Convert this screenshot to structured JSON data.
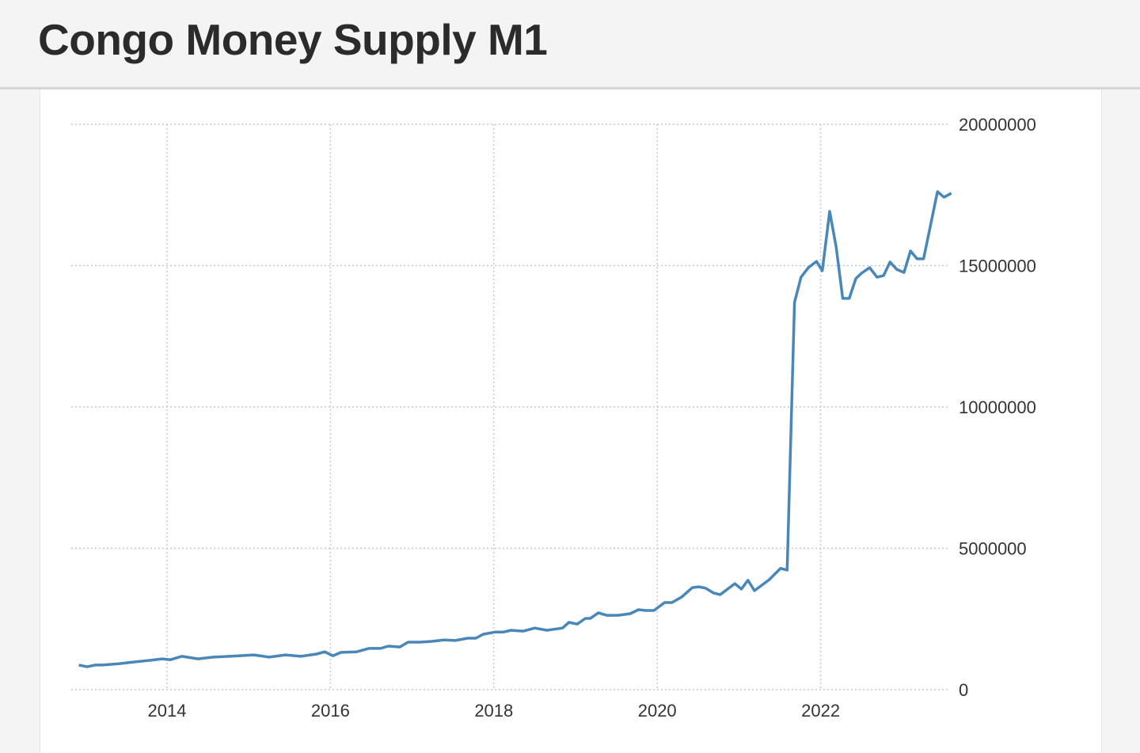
{
  "header": {
    "title": "Congo Money Supply M1"
  },
  "chart_data": {
    "type": "line",
    "title": "Congo Money Supply M1",
    "xlabel": "",
    "ylabel": "",
    "xlim": [
      2012.85,
      2023.65
    ],
    "ylim": [
      0,
      20000000
    ],
    "grid": true,
    "line_color": "#4a87b9",
    "x_ticks": [
      {
        "value": 2014,
        "label": "2014"
      },
      {
        "value": 2016,
        "label": "2016"
      },
      {
        "value": 2018,
        "label": "2018"
      },
      {
        "value": 2020,
        "label": "2020"
      },
      {
        "value": 2022,
        "label": "2022"
      }
    ],
    "y_ticks": [
      {
        "value": 0,
        "label": "0"
      },
      {
        "value": 5000000,
        "label": "5000000"
      },
      {
        "value": 10000000,
        "label": "10000000"
      },
      {
        "value": 15000000,
        "label": "15000000"
      },
      {
        "value": 20000000,
        "label": "20000000"
      }
    ],
    "series": [
      {
        "name": "Money Supply M1",
        "x": [
          2012.92,
          2013.02,
          2013.12,
          2013.21,
          2013.41,
          2013.6,
          2013.8,
          2013.94,
          2014.04,
          2014.18,
          2014.38,
          2014.57,
          2014.77,
          2015.06,
          2015.25,
          2015.45,
          2015.64,
          2015.83,
          2015.93,
          2016.03,
          2016.13,
          2016.32,
          2016.47,
          2016.61,
          2016.71,
          2016.85,
          2016.95,
          2017.1,
          2017.24,
          2017.39,
          2017.53,
          2017.68,
          2017.78,
          2017.87,
          2018.02,
          2018.12,
          2018.21,
          2018.36,
          2018.5,
          2018.65,
          2018.84,
          2018.92,
          2019.02,
          2019.12,
          2019.18,
          2019.28,
          2019.38,
          2019.52,
          2019.67,
          2019.77,
          2019.86,
          2019.96,
          2020.09,
          2020.18,
          2020.3,
          2020.43,
          2020.51,
          2020.59,
          2020.69,
          2020.77,
          2020.95,
          2021.03,
          2021.11,
          2021.19,
          2021.37,
          2021.51,
          2021.59,
          2021.68,
          2021.76,
          2021.85,
          2021.95,
          2022.02,
          2022.11,
          2022.19,
          2022.27,
          2022.35,
          2022.43,
          2022.5,
          2022.6,
          2022.69,
          2022.77,
          2022.85,
          2022.93,
          2023.02,
          2023.1,
          2023.18,
          2023.26,
          2023.43,
          2023.51,
          2023.6
        ],
        "y": [
          870000,
          810000,
          870000,
          870000,
          920000,
          980000,
          1040000,
          1090000,
          1060000,
          1180000,
          1090000,
          1150000,
          1180000,
          1230000,
          1150000,
          1230000,
          1180000,
          1260000,
          1340000,
          1200000,
          1320000,
          1340000,
          1460000,
          1460000,
          1540000,
          1510000,
          1680000,
          1680000,
          1710000,
          1760000,
          1740000,
          1820000,
          1820000,
          1960000,
          2040000,
          2040000,
          2100000,
          2070000,
          2180000,
          2100000,
          2180000,
          2380000,
          2320000,
          2520000,
          2520000,
          2720000,
          2630000,
          2630000,
          2690000,
          2830000,
          2800000,
          2800000,
          3080000,
          3080000,
          3280000,
          3610000,
          3640000,
          3590000,
          3420000,
          3360000,
          3750000,
          3560000,
          3870000,
          3500000,
          3890000,
          4290000,
          4230000,
          13700000,
          14590000,
          14930000,
          15150000,
          14820000,
          16920000,
          15660000,
          13840000,
          13840000,
          14540000,
          14730000,
          14930000,
          14590000,
          14650000,
          15130000,
          14870000,
          14760000,
          15520000,
          15240000,
          15240000,
          17620000,
          17420000,
          17560000
        ]
      }
    ]
  }
}
